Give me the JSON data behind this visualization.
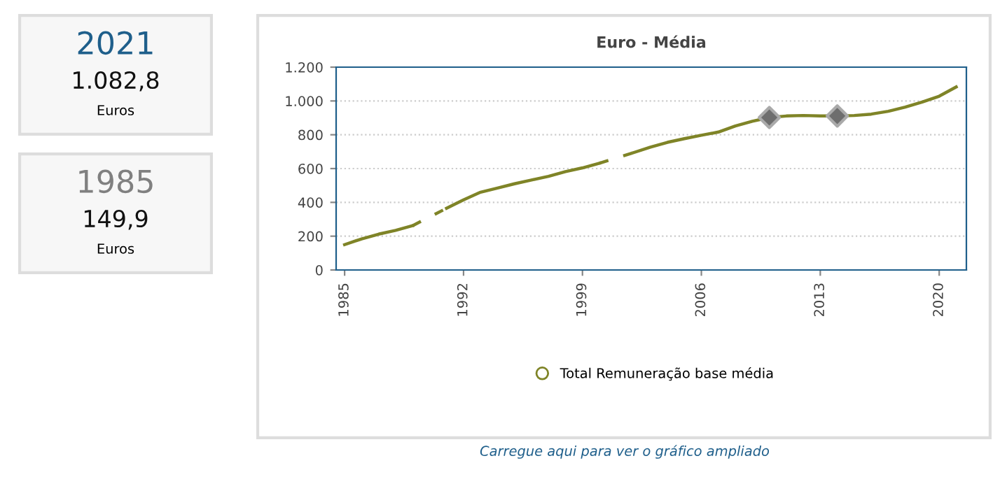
{
  "chart_data": [
    {
      "type": "other",
      "title": "2021",
      "subtitle": "1.082,8",
      "annotations": [
        "Euros"
      ],
      "color": "#1f5f8b"
    },
    {
      "type": "other",
      "title": "1985",
      "subtitle": "149,9",
      "annotations": [
        "Euros"
      ],
      "color": "#808080"
    },
    {
      "type": "line",
      "title": "Euro - Média",
      "x": [
        1985,
        1986,
        1987,
        1988,
        1989,
        1990,
        1991,
        1992,
        1993,
        1994,
        1995,
        1996,
        1997,
        1998,
        1999,
        2000,
        2001,
        2002,
        2003,
        2004,
        2005,
        2006,
        2007,
        2008,
        2009,
        2010,
        2011,
        2012,
        2013,
        2014,
        2015,
        2016,
        2017,
        2018,
        2019,
        2020,
        2021
      ],
      "series": [
        {
          "name": "Total Remuneração base média",
          "color": "#7f8427",
          "values": [
            149.9,
            184,
            212,
            234,
            262,
            null,
            365,
            415,
            460,
            485,
            510,
            532,
            554,
            582,
            604,
            632,
            null,
            694,
            727,
            755,
            777,
            797,
            816,
            852,
            880,
            902,
            911,
            914,
            911,
            911,
            914,
            922,
            939,
            964,
            994,
            1028,
            1082.8
          ]
        },
        {
          "type": "scatter",
          "color": "#6e6e6e",
          "marker": "diamond",
          "x": [
            2010,
            2014
          ],
          "values": [
            902,
            911
          ]
        }
      ],
      "xlim": [
        1984.5,
        2021.6
      ],
      "ylim": [
        0,
        1200
      ],
      "xticks": [
        1985,
        1992,
        1999,
        2006,
        2013,
        2020
      ],
      "yticks": [
        {
          "value": 0,
          "label": "0"
        },
        {
          "value": 200,
          "label": "200"
        },
        {
          "value": 400,
          "label": "400"
        },
        {
          "value": 600,
          "label": "600"
        },
        {
          "value": 800,
          "label": "800"
        },
        {
          "value": 1000,
          "label": "1.000"
        },
        {
          "value": 1200,
          "label": "1.200"
        }
      ],
      "grid": "y",
      "legend": "bottom",
      "line_style": "solid",
      "annotations": [
        "Carregue aqui para ver o gráfico ampliado"
      ]
    }
  ]
}
